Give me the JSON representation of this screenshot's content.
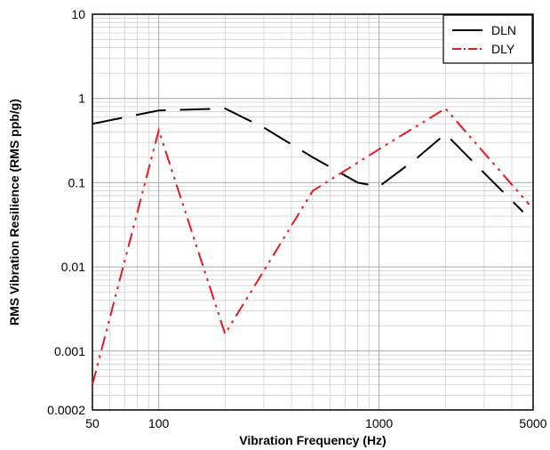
{
  "chart_data": {
    "type": "line",
    "xlabel": "Vibration Frequency (Hz)",
    "ylabel": "RMS Vibration Resilience (RMS ppb/g)",
    "xscale": "log",
    "yscale": "log",
    "xlim": [
      50,
      5000
    ],
    "ylim": [
      0.0002,
      10
    ],
    "grid": true,
    "legend_position": "top-right",
    "x_ticks": [
      {
        "value": 50,
        "label": "50"
      },
      {
        "value": 100,
        "label": "100"
      },
      {
        "value": 1000,
        "label": "1000"
      },
      {
        "value": 5000,
        "label": "5000"
      }
    ],
    "y_ticks": [
      {
        "value": 10,
        "label": "10"
      },
      {
        "value": 1,
        "label": "1"
      },
      {
        "value": 0.1,
        "label": "0.1"
      },
      {
        "value": 0.01,
        "label": "0.01"
      },
      {
        "value": 0.001,
        "label": "0.001"
      },
      {
        "value": 0.0002,
        "label": "0.0002"
      }
    ],
    "series": [
      {
        "name": "DLN",
        "color": "#000000",
        "dash": "long-dash",
        "points": [
          [
            50,
            0.5
          ],
          [
            100,
            0.72
          ],
          [
            200,
            0.76
          ],
          [
            300,
            0.45
          ],
          [
            500,
            0.2
          ],
          [
            800,
            0.1
          ],
          [
            1000,
            0.09
          ],
          [
            1500,
            0.2
          ],
          [
            2000,
            0.38
          ],
          [
            3000,
            0.13
          ],
          [
            4500,
            0.045
          ]
        ]
      },
      {
        "name": "DLY",
        "color": "#e41a1c",
        "dash": "dash-dot-dot",
        "points": [
          [
            50,
            0.0004
          ],
          [
            100,
            0.42
          ],
          [
            200,
            0.0016
          ],
          [
            500,
            0.08
          ],
          [
            1000,
            0.25
          ],
          [
            2000,
            0.76
          ],
          [
            4800,
            0.055
          ]
        ]
      }
    ]
  }
}
